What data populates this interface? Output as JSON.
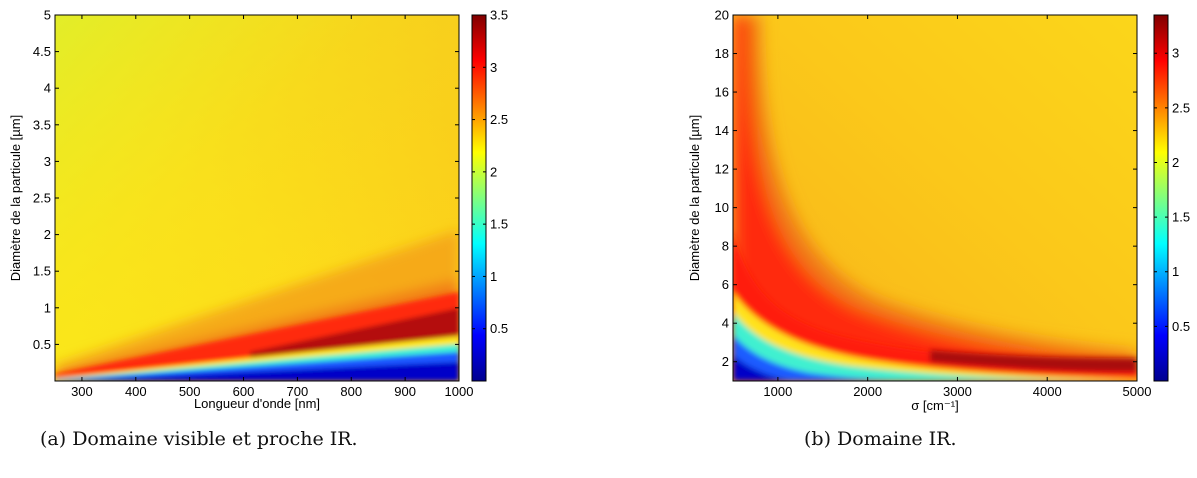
{
  "chart_data": [
    {
      "type": "heatmap",
      "title": "",
      "xlabel": "Longueur d'onde [nm]",
      "ylabel": "Diamètre de la particule [µm]",
      "xlim": [
        250,
        1000
      ],
      "ylim": [
        0,
        5
      ],
      "x_ticks": [
        300,
        400,
        500,
        600,
        700,
        800,
        900,
        1000
      ],
      "y_ticks": [
        0.5,
        1,
        1.5,
        2,
        2.5,
        3,
        3.5,
        4,
        4.5,
        5
      ],
      "colorbar": {
        "colormap": "jet",
        "range": [
          0,
          3.5
        ],
        "ticks": [
          0.5,
          1,
          1.5,
          2,
          2.5,
          3,
          3.5
        ]
      },
      "caption": "(a) Domaine visible et proche IR."
    },
    {
      "type": "heatmap",
      "title": "",
      "xlabel": "σ [cm⁻¹]",
      "ylabel": "Diamètre de la particule [µm]",
      "xlim": [
        500,
        5000
      ],
      "ylim": [
        1,
        20
      ],
      "x_ticks": [
        1000,
        2000,
        3000,
        4000,
        5000
      ],
      "y_ticks": [
        2,
        4,
        6,
        8,
        10,
        12,
        14,
        16,
        18,
        20
      ],
      "colorbar": {
        "colormap": "jet",
        "range": [
          0,
          3.35
        ],
        "ticks": [
          0.5,
          1,
          1.5,
          2,
          2.5,
          3
        ]
      },
      "caption": "(b) Domaine IR."
    }
  ]
}
